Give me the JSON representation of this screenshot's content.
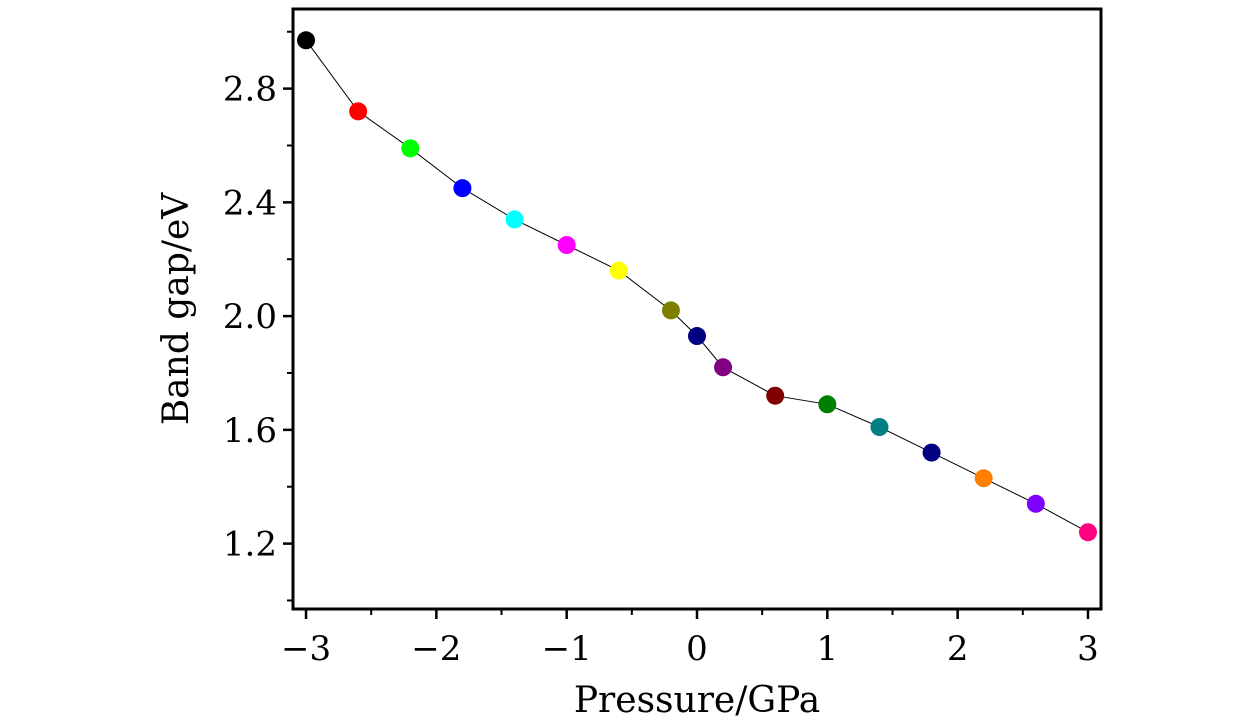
{
  "chart_data": {
    "type": "scatter",
    "xlabel": "Pressure/GPa",
    "ylabel": "Band gap/eV",
    "xlim": [
      -3.1,
      3.1
    ],
    "ylim": [
      0.97,
      3.08
    ],
    "x_ticks": [
      -3,
      -2,
      -1,
      0,
      1,
      2,
      3
    ],
    "x_tick_labels": [
      "−3",
      "−2",
      "−1",
      "0",
      "1",
      "2",
      "3"
    ],
    "y_ticks": [
      1.2,
      1.6,
      2.0,
      2.4,
      2.8
    ],
    "y_tick_labels": [
      "1.2",
      "1.6",
      "2.0",
      "2.4",
      "2.8"
    ],
    "x_minor_ticks": [
      -2.5,
      -1.5,
      -0.5,
      0.5,
      1.5,
      2.5
    ],
    "y_minor_ticks": [
      1.0,
      1.4,
      1.8,
      2.2,
      2.6,
      3.0
    ],
    "connecting_line": true,
    "line_color": "#000000",
    "grid": false,
    "legend": "none",
    "points": [
      {
        "x": -3.0,
        "y": 2.97,
        "color": "#000000"
      },
      {
        "x": -2.6,
        "y": 2.72,
        "color": "#ff0000"
      },
      {
        "x": -2.2,
        "y": 2.59,
        "color": "#00ff00"
      },
      {
        "x": -1.8,
        "y": 2.45,
        "color": "#0000ff"
      },
      {
        "x": -1.4,
        "y": 2.34,
        "color": "#00ffff"
      },
      {
        "x": -1.0,
        "y": 2.25,
        "color": "#ff00ff"
      },
      {
        "x": -0.6,
        "y": 2.16,
        "color": "#ffff00"
      },
      {
        "x": -0.2,
        "y": 2.02,
        "color": "#808000"
      },
      {
        "x": 0.0,
        "y": 1.93,
        "color": "#000080"
      },
      {
        "x": 0.2,
        "y": 1.82,
        "color": "#800080"
      },
      {
        "x": 0.6,
        "y": 1.72,
        "color": "#800000"
      },
      {
        "x": 1.0,
        "y": 1.69,
        "color": "#008000"
      },
      {
        "x": 1.4,
        "y": 1.61,
        "color": "#008080"
      },
      {
        "x": 1.8,
        "y": 1.52,
        "color": "#000080"
      },
      {
        "x": 2.2,
        "y": 1.43,
        "color": "#ff8000"
      },
      {
        "x": 2.6,
        "y": 1.34,
        "color": "#8000ff"
      },
      {
        "x": 3.0,
        "y": 1.24,
        "color": "#ff0080"
      }
    ]
  }
}
